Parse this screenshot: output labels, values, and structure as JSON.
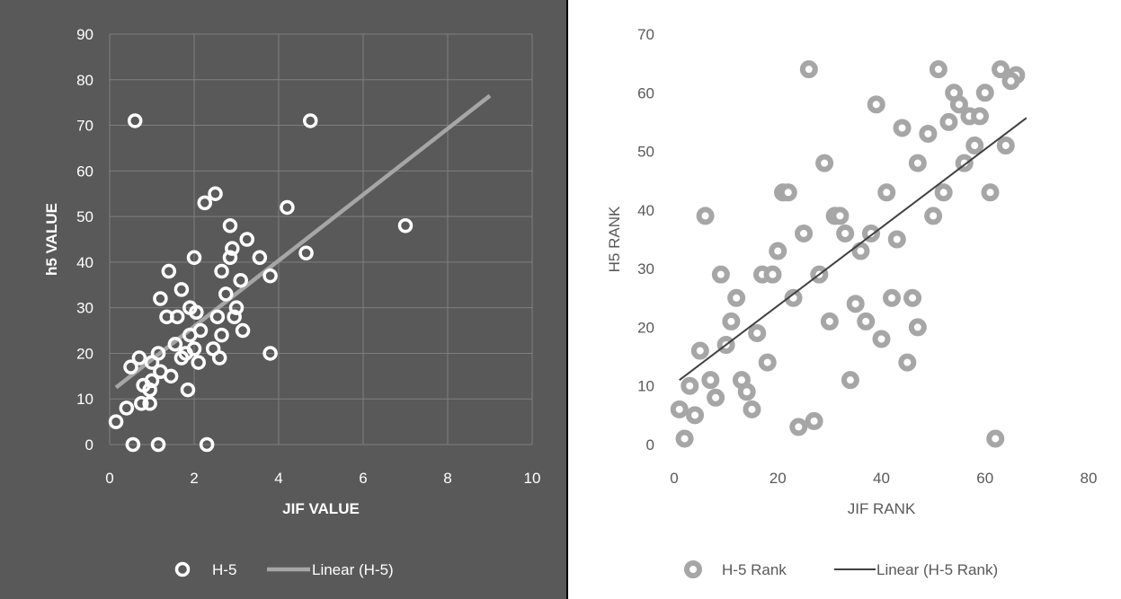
{
  "chart_data": [
    {
      "type": "scatter",
      "xlabel": "JIF VALUE",
      "ylabel": "h5 VALUE",
      "xlim": [
        0,
        10
      ],
      "ylim": [
        0,
        90
      ],
      "x_ticks": [
        "0",
        "2",
        "4",
        "6",
        "8",
        "10"
      ],
      "y_ticks": [
        "0",
        "10",
        "20",
        "30",
        "40",
        "50",
        "60",
        "70",
        "80",
        "90"
      ],
      "grid": true,
      "background": "#595959",
      "legend_position": "bottom",
      "series": [
        {
          "name": "H-5",
          "marker": "hollow-circle",
          "color": "#ffffff",
          "points": [
            [
              0.6,
              71
            ],
            [
              4.75,
              71
            ],
            [
              2.5,
              55
            ],
            [
              2.25,
              53
            ],
            [
              4.2,
              52
            ],
            [
              7.0,
              48
            ],
            [
              2.85,
              48
            ],
            [
              4.65,
              42
            ],
            [
              2.0,
              41
            ],
            [
              2.9,
              43
            ],
            [
              3.25,
              45
            ],
            [
              3.55,
              41
            ],
            [
              2.85,
              41
            ],
            [
              2.65,
              38
            ],
            [
              1.4,
              38
            ],
            [
              3.8,
              37
            ],
            [
              3.1,
              36
            ],
            [
              1.7,
              34
            ],
            [
              2.75,
              33
            ],
            [
              1.2,
              32
            ],
            [
              3.0,
              30
            ],
            [
              1.9,
              30
            ],
            [
              2.05,
              29
            ],
            [
              1.35,
              28
            ],
            [
              1.6,
              28
            ],
            [
              2.55,
              28
            ],
            [
              2.95,
              28
            ],
            [
              2.15,
              25
            ],
            [
              3.15,
              25
            ],
            [
              2.65,
              24
            ],
            [
              1.9,
              24
            ],
            [
              1.55,
              22
            ],
            [
              2.0,
              21
            ],
            [
              2.45,
              21
            ],
            [
              1.8,
              20
            ],
            [
              1.15,
              20
            ],
            [
              3.8,
              20
            ],
            [
              0.7,
              19
            ],
            [
              1.7,
              19
            ],
            [
              2.6,
              19
            ],
            [
              1.0,
              18
            ],
            [
              2.1,
              18
            ],
            [
              0.5,
              17
            ],
            [
              1.2,
              16
            ],
            [
              1.45,
              15
            ],
            [
              1.0,
              14
            ],
            [
              0.8,
              13
            ],
            [
              0.95,
              12
            ],
            [
              1.85,
              12
            ],
            [
              0.75,
              9
            ],
            [
              0.95,
              9
            ],
            [
              0.4,
              8
            ],
            [
              0.15,
              5
            ],
            [
              0.55,
              0
            ],
            [
              1.15,
              0
            ],
            [
              2.3,
              0
            ]
          ]
        },
        {
          "name": "Linear (H-5)",
          "type": "line",
          "color": "#a6a6a6",
          "x": [
            0.15,
            9.0
          ],
          "y": [
            12.5,
            76.5
          ]
        }
      ]
    },
    {
      "type": "scatter",
      "xlabel": "JIF RANK",
      "ylabel": "H5 RANK",
      "xlim": [
        0,
        80
      ],
      "ylim": [
        0,
        70
      ],
      "x_ticks": [
        "0",
        "20",
        "40",
        "60",
        "80"
      ],
      "y_ticks": [
        "0",
        "10",
        "20",
        "30",
        "40",
        "50",
        "60",
        "70"
      ],
      "grid": false,
      "background": "#ffffff",
      "legend_position": "bottom",
      "series": [
        {
          "name": "H-5 Rank",
          "marker": "gray-ring-dot",
          "color": "#a6a6a6",
          "points": [
            [
              26,
              64
            ],
            [
              51,
              64
            ],
            [
              63,
              64
            ],
            [
              66,
              63
            ],
            [
              65,
              62
            ],
            [
              60,
              60
            ],
            [
              54,
              60
            ],
            [
              39,
              58
            ],
            [
              55,
              58
            ],
            [
              57,
              56
            ],
            [
              59,
              56
            ],
            [
              53,
              55
            ],
            [
              44,
              54
            ],
            [
              49,
              53
            ],
            [
              58,
              51
            ],
            [
              64,
              51
            ],
            [
              29,
              48
            ],
            [
              47,
              48
            ],
            [
              56,
              48
            ],
            [
              21,
              43
            ],
            [
              22,
              43
            ],
            [
              41,
              43
            ],
            [
              52,
              43
            ],
            [
              61,
              43
            ],
            [
              6,
              39
            ],
            [
              31,
              39
            ],
            [
              32,
              39
            ],
            [
              50,
              39
            ],
            [
              25,
              36
            ],
            [
              33,
              36
            ],
            [
              38,
              36
            ],
            [
              43,
              35
            ],
            [
              20,
              33
            ],
            [
              36,
              33
            ],
            [
              9,
              29
            ],
            [
              17,
              29
            ],
            [
              19,
              29
            ],
            [
              28,
              29
            ],
            [
              12,
              25
            ],
            [
              23,
              25
            ],
            [
              35,
              24
            ],
            [
              42,
              25
            ],
            [
              46,
              25
            ],
            [
              11,
              21
            ],
            [
              30,
              21
            ],
            [
              37,
              21
            ],
            [
              47,
              20
            ],
            [
              16,
              19
            ],
            [
              40,
              18
            ],
            [
              10,
              17
            ],
            [
              5,
              16
            ],
            [
              18,
              14
            ],
            [
              45,
              14
            ],
            [
              7,
              11
            ],
            [
              13,
              11
            ],
            [
              34,
              11
            ],
            [
              3,
              10
            ],
            [
              14,
              9
            ],
            [
              8,
              8
            ],
            [
              1,
              6
            ],
            [
              15,
              6
            ],
            [
              4,
              5
            ],
            [
              27,
              4
            ],
            [
              24,
              3
            ],
            [
              2,
              1
            ],
            [
              62,
              1
            ]
          ]
        },
        {
          "name": "Linear (H-5 Rank)",
          "type": "line",
          "color": "#404040",
          "x": [
            1,
            68
          ],
          "y": [
            11,
            55.7
          ]
        }
      ]
    }
  ]
}
